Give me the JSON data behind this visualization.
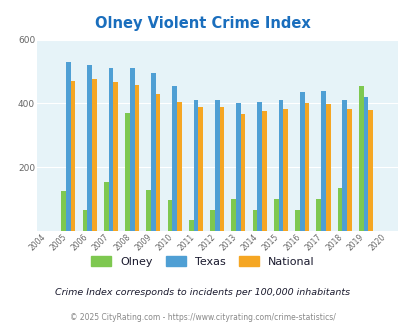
{
  "title": "Olney Violent Crime Index",
  "years": [
    "2004",
    "2005",
    "2006",
    "2007",
    "2008",
    "2009",
    "2010",
    "2011",
    "2012",
    "2013",
    "2014",
    "2015",
    "2016",
    "2017",
    "2018",
    "2019",
    "2020"
  ],
  "olney": [
    0,
    125,
    65,
    155,
    370,
    127,
    98,
    35,
    65,
    100,
    65,
    100,
    65,
    100,
    135,
    455,
    0
  ],
  "texas": [
    0,
    530,
    520,
    510,
    510,
    495,
    455,
    410,
    410,
    400,
    405,
    410,
    435,
    440,
    410,
    420,
    0
  ],
  "national": [
    0,
    470,
    475,
    468,
    458,
    428,
    403,
    390,
    390,
    368,
    375,
    382,
    400,
    397,
    383,
    378,
    0
  ],
  "olney_color": "#7ec850",
  "texas_color": "#4f9fd4",
  "national_color": "#f5a623",
  "bg_color": "#e6f3f8",
  "ylim": [
    0,
    600
  ],
  "yticks": [
    0,
    200,
    400,
    600
  ],
  "subtitle": "Crime Index corresponds to incidents per 100,000 inhabitants",
  "footer": "© 2025 CityRating.com - https://www.cityrating.com/crime-statistics/",
  "title_color": "#1a6ebd",
  "subtitle_color": "#1a1a2e",
  "footer_color": "#888888",
  "legend_labels": [
    "Olney",
    "Texas",
    "National"
  ],
  "bar_width": 0.22
}
